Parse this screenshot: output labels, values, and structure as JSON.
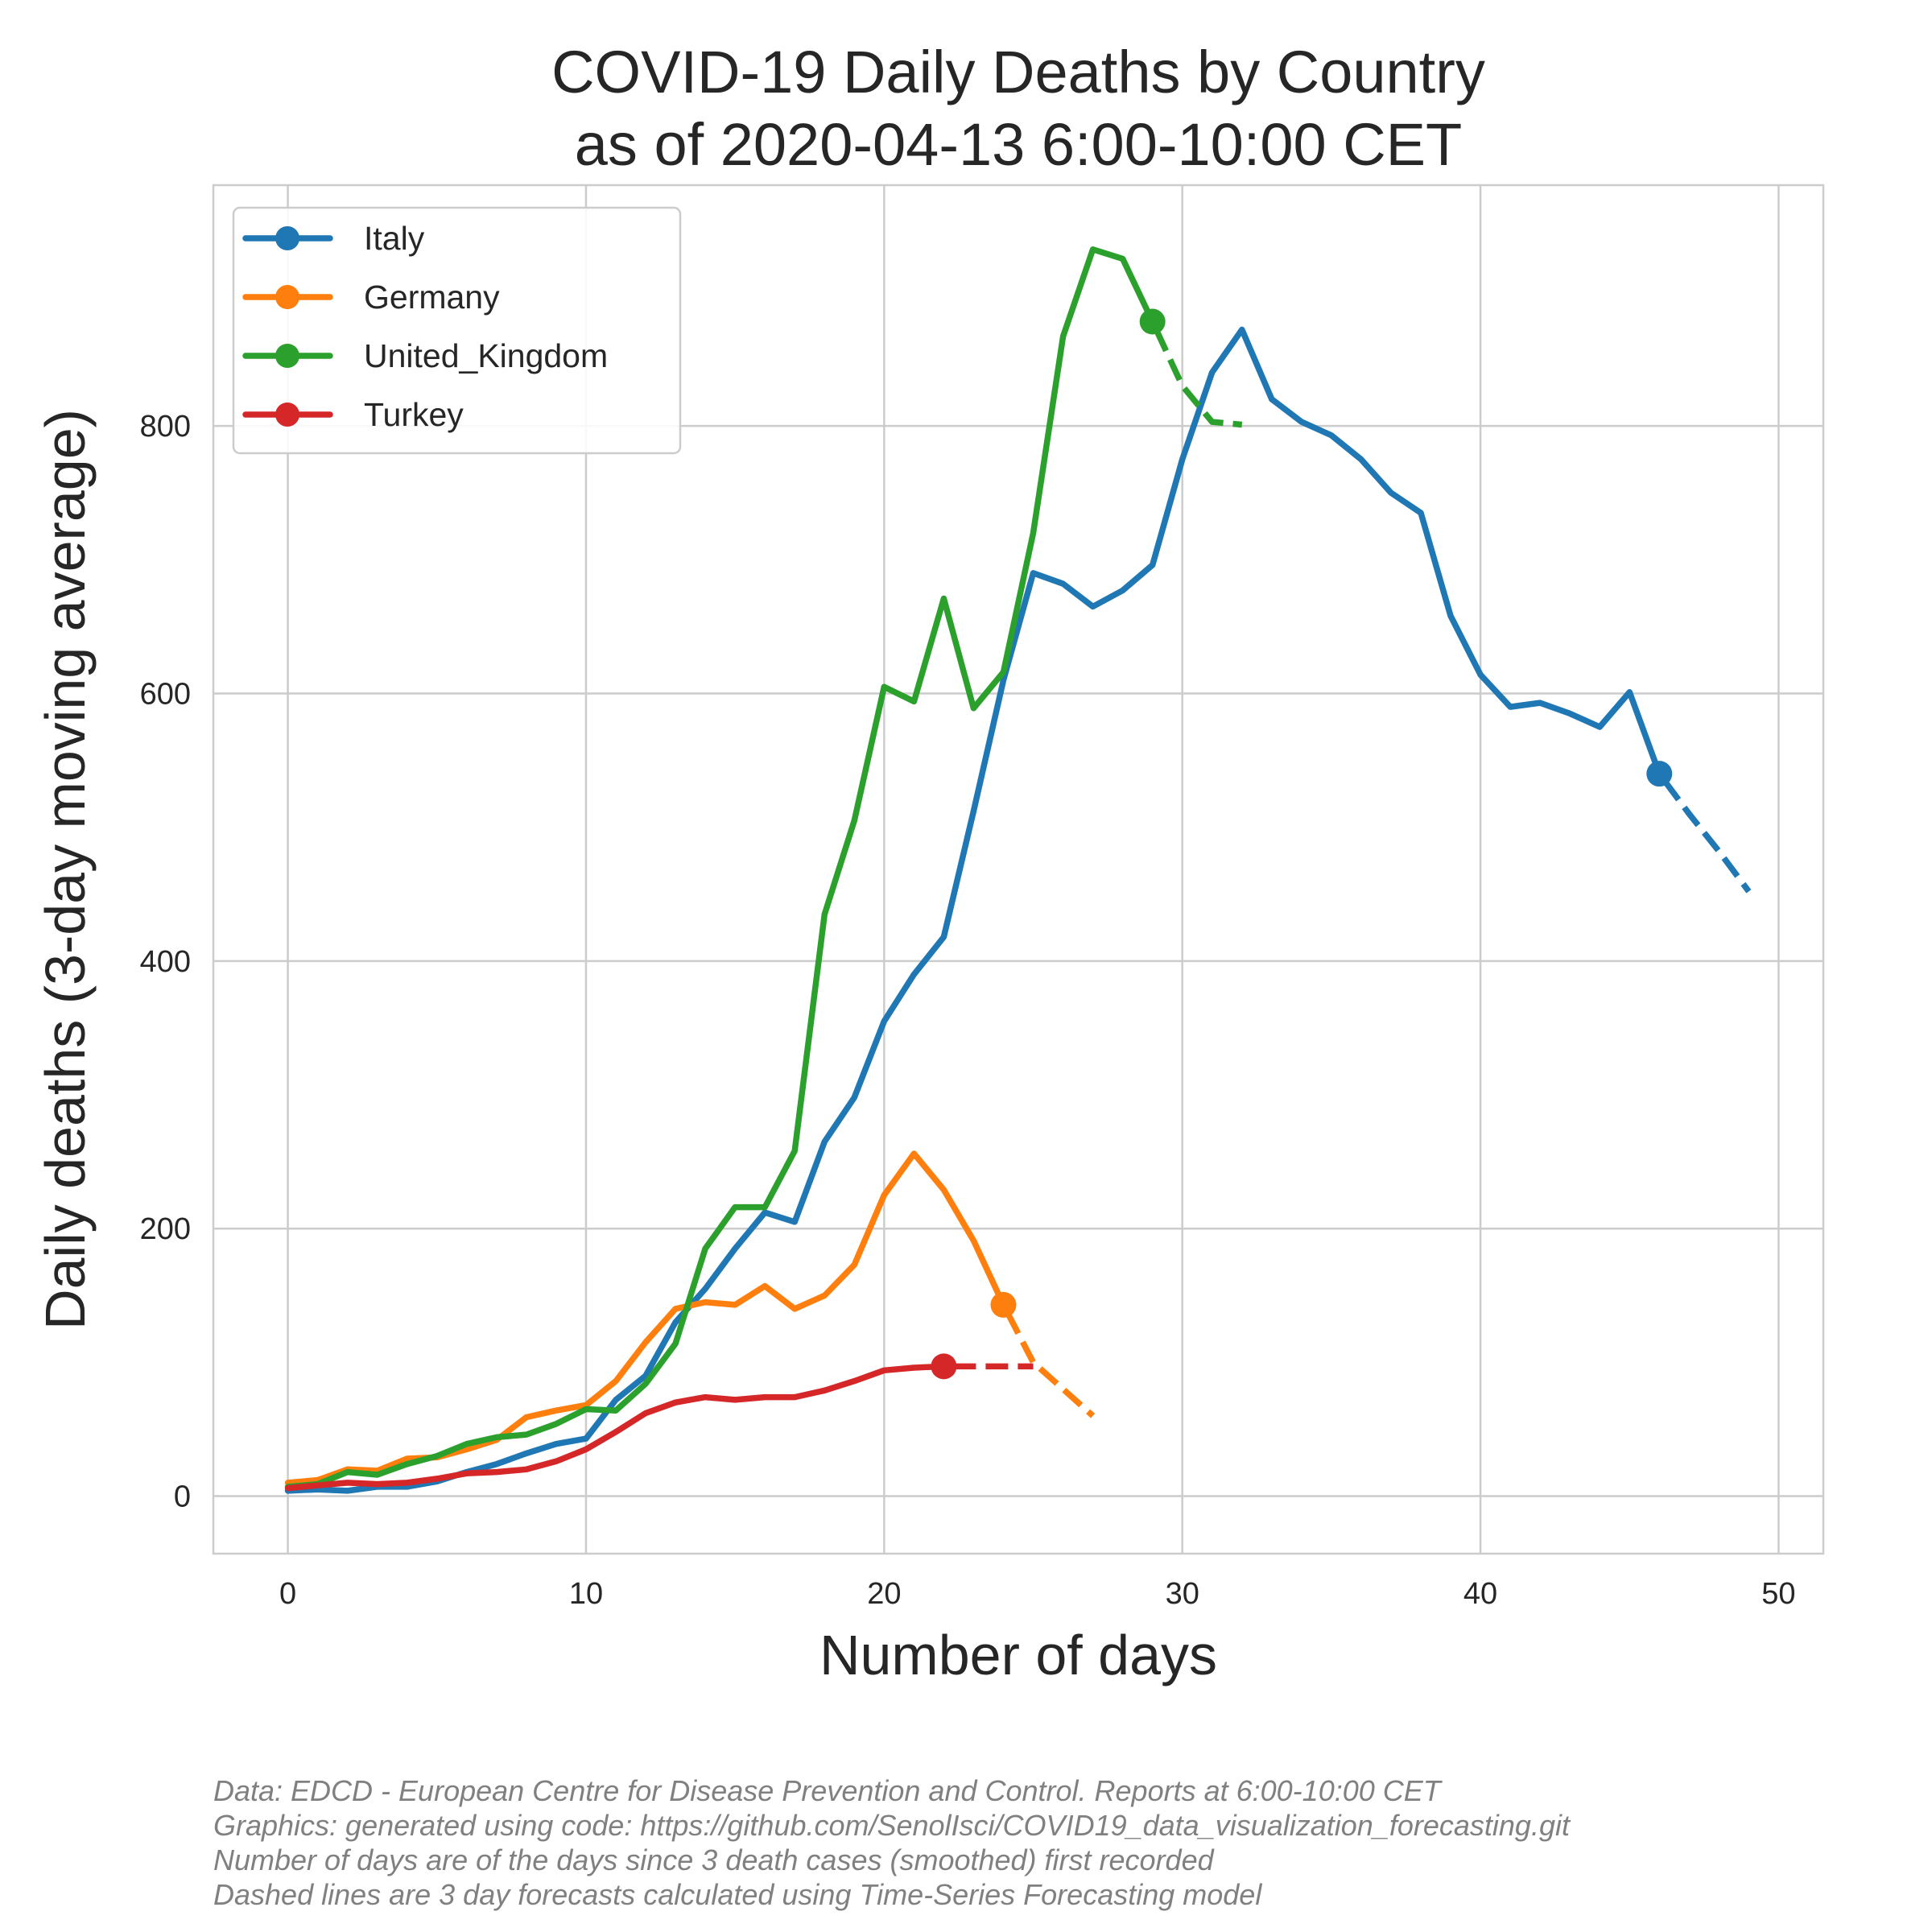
{
  "chart_data": {
    "type": "line",
    "title_lines": [
      "COVID-19 Daily Deaths by Country",
      "as of 2020-04-13 6:00-10:00 CET"
    ],
    "xlabel": "Number of days",
    "ylabel": "Daily deaths (3-day moving average)",
    "xlim": [
      -2.5,
      51.5
    ],
    "ylim": [
      -43,
      980
    ],
    "xticks": [
      0,
      10,
      20,
      30,
      40,
      50
    ],
    "yticks": [
      0,
      200,
      400,
      600,
      800
    ],
    "grid": true,
    "legend_position": "top-left",
    "series": [
      {
        "name": "Italy",
        "color": "#1f77b4",
        "x": [
          0,
          1,
          2,
          3,
          4,
          5,
          6,
          7,
          8,
          9,
          10,
          11,
          12,
          13,
          14,
          15,
          16,
          17,
          18,
          19,
          20,
          21,
          22,
          23,
          24,
          25,
          26,
          27,
          28,
          29,
          30,
          31,
          32,
          33,
          34,
          35,
          36,
          37,
          38,
          39,
          40,
          41,
          42,
          43,
          44,
          45,
          46
        ],
        "y": [
          4,
          5,
          4,
          7,
          7,
          11,
          18,
          24,
          32,
          39,
          43,
          72,
          90,
          130,
          155,
          185,
          212,
          205,
          265,
          298,
          355,
          390,
          418,
          512,
          610,
          690,
          682,
          665,
          677,
          696,
          775,
          840,
          872,
          820,
          803,
          793,
          775,
          750,
          735,
          658,
          614,
          590,
          593,
          585,
          575,
          601,
          540
        ],
        "forecast_x": [
          46,
          47,
          48,
          49
        ],
        "forecast_y": [
          540,
          510,
          482,
          452
        ]
      },
      {
        "name": "Germany",
        "color": "#ff7f0e",
        "x": [
          0,
          1,
          2,
          3,
          4,
          5,
          6,
          7,
          8,
          9,
          10,
          11,
          12,
          13,
          14,
          15,
          16,
          17,
          18,
          19,
          20,
          21,
          22,
          23,
          24
        ],
        "y": [
          10,
          12,
          20,
          19,
          28,
          29,
          35,
          42,
          59,
          64,
          68,
          86,
          115,
          140,
          145,
          143,
          157,
          140,
          150,
          173,
          225,
          256,
          229,
          191,
          143
        ],
        "forecast_x": [
          24,
          25,
          26,
          27
        ],
        "forecast_y": [
          143,
          100,
          80,
          60
        ]
      },
      {
        "name": "United_Kingdom",
        "color": "#2ca02c",
        "x": [
          0,
          1,
          2,
          3,
          4,
          5,
          6,
          7,
          8,
          9,
          10,
          11,
          12,
          13,
          14,
          15,
          16,
          17,
          18,
          19,
          20,
          21,
          22,
          23,
          24,
          25,
          26,
          27,
          28,
          29
        ],
        "y": [
          7,
          9,
          18,
          16,
          24,
          30,
          39,
          44,
          46,
          54,
          65,
          64,
          84,
          114,
          185,
          216,
          216,
          258,
          435,
          505,
          605,
          594,
          671,
          589,
          616,
          720,
          867,
          932,
          925,
          878
        ],
        "forecast_x": [
          29,
          30,
          31,
          32
        ],
        "forecast_y": [
          878,
          830,
          803,
          801
        ]
      },
      {
        "name": "Turkey",
        "color": "#d62728",
        "x": [
          0,
          1,
          2,
          3,
          4,
          5,
          6,
          7,
          8,
          9,
          10,
          11,
          12,
          13,
          14,
          15,
          16,
          17,
          18,
          19,
          20,
          21,
          22
        ],
        "y": [
          6,
          8,
          10,
          9,
          10,
          13,
          17,
          18,
          20,
          26,
          35,
          48,
          62,
          70,
          74,
          72,
          74,
          74,
          79,
          86,
          94,
          96,
          97
        ],
        "forecast_x": [
          22,
          23,
          24,
          25
        ],
        "forecast_y": [
          97,
          97,
          97,
          97
        ]
      }
    ],
    "footnotes": [
      "Data: EDCD - European Centre for Disease Prevention and Control. Reports at 6:00-10:00 CET",
      "Graphics: generated using code: https://github.com/SenolIsci/COVID19_data_visualization_forecasting.git",
      "Number of days are of the days since 3 death cases (smoothed) first recorded",
      "Dashed lines are 3 day forecasts calculated using Time-Series Forecasting model"
    ]
  }
}
